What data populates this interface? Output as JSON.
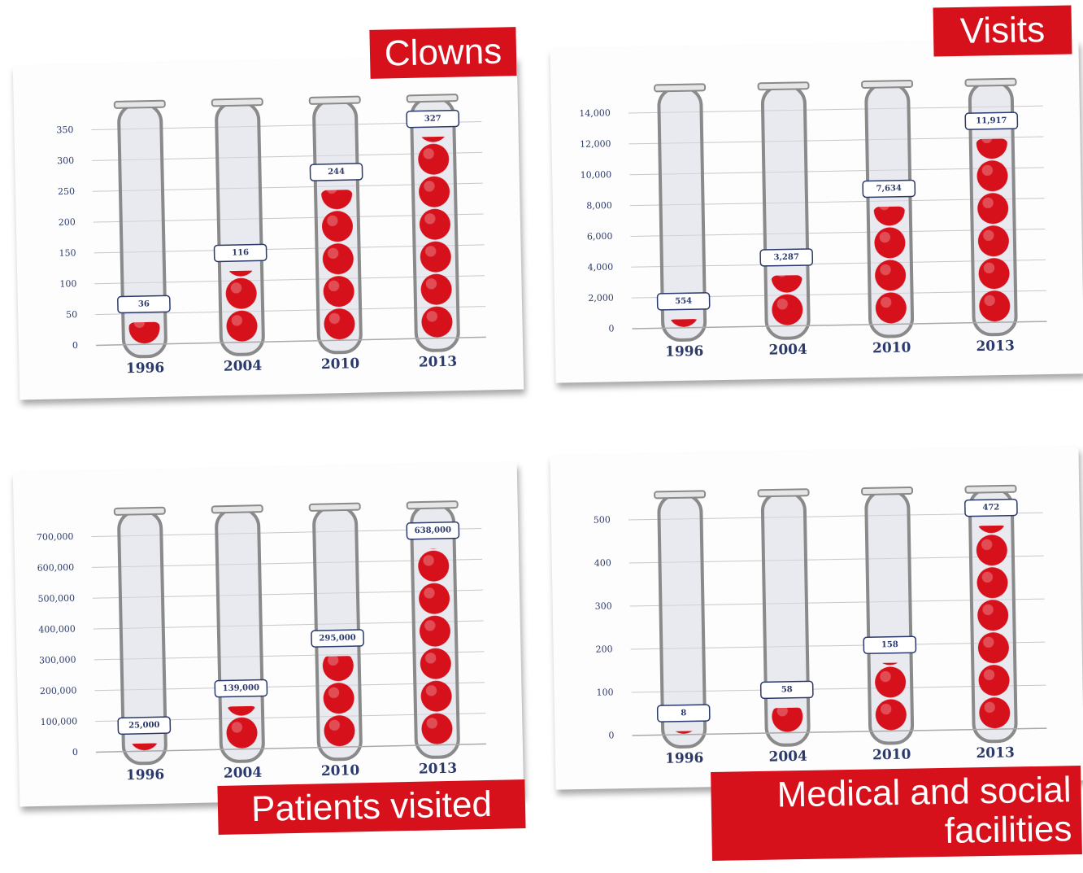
{
  "chart_data": [
    {
      "type": "bar",
      "title": "Clowns",
      "color": "#d7111c",
      "categories": [
        "1996",
        "2004",
        "2010",
        "2013"
      ],
      "values": [
        36,
        116,
        244,
        327
      ],
      "ylim": [
        0,
        350
      ],
      "yticks": [
        0,
        50,
        100,
        150,
        200,
        250,
        300,
        350
      ],
      "grid": true
    },
    {
      "type": "bar",
      "title": "Visits",
      "color": "#d7111c",
      "categories": [
        "1996",
        "2004",
        "2010",
        "2013"
      ],
      "values": [
        554,
        3287,
        7634,
        11917
      ],
      "value_labels": [
        "554",
        "3,287",
        "7,634",
        "11,917"
      ],
      "ylim": [
        0,
        14000
      ],
      "yticks": [
        0,
        {
          "value": 2000,
          "label": "2,000"
        },
        {
          "value": 4000,
          "label": "4,000"
        },
        {
          "value": 6000,
          "label": "6,000"
        },
        {
          "value": 8000,
          "label": "8,000"
        },
        {
          "value": 10000,
          "label": "10,000"
        },
        {
          "value": 12000,
          "label": "12,000"
        },
        {
          "value": 14000,
          "label": "14,000"
        }
      ],
      "grid": true
    },
    {
      "type": "bar",
      "title": "Patients visited",
      "color": "#d7111c",
      "categories": [
        "1996",
        "2004",
        "2010",
        "2013"
      ],
      "values": [
        25000,
        139000,
        295000,
        638000
      ],
      "value_labels": [
        "25,000",
        "139,000",
        "295,000",
        "638,000"
      ],
      "ylim": [
        0,
        700000
      ],
      "yticks": [
        0,
        {
          "value": 100000,
          "label": "100,000"
        },
        {
          "value": 200000,
          "label": "200,000"
        },
        {
          "value": 300000,
          "label": "300,000"
        },
        {
          "value": 400000,
          "label": "400,000"
        },
        {
          "value": 500000,
          "label": "500,000"
        },
        {
          "value": 600000,
          "label": "600,000"
        },
        {
          "value": 700000,
          "label": "700,000"
        }
      ],
      "grid": true
    },
    {
      "type": "bar",
      "title": "Medical and social facilities",
      "color": "#d7111c",
      "categories": [
        "1996",
        "2004",
        "2010",
        "2013"
      ],
      "values": [
        8,
        58,
        158,
        472
      ],
      "ylim": [
        0,
        500
      ],
      "yticks": [
        0,
        100,
        200,
        300,
        400,
        500
      ],
      "grid": true
    }
  ]
}
